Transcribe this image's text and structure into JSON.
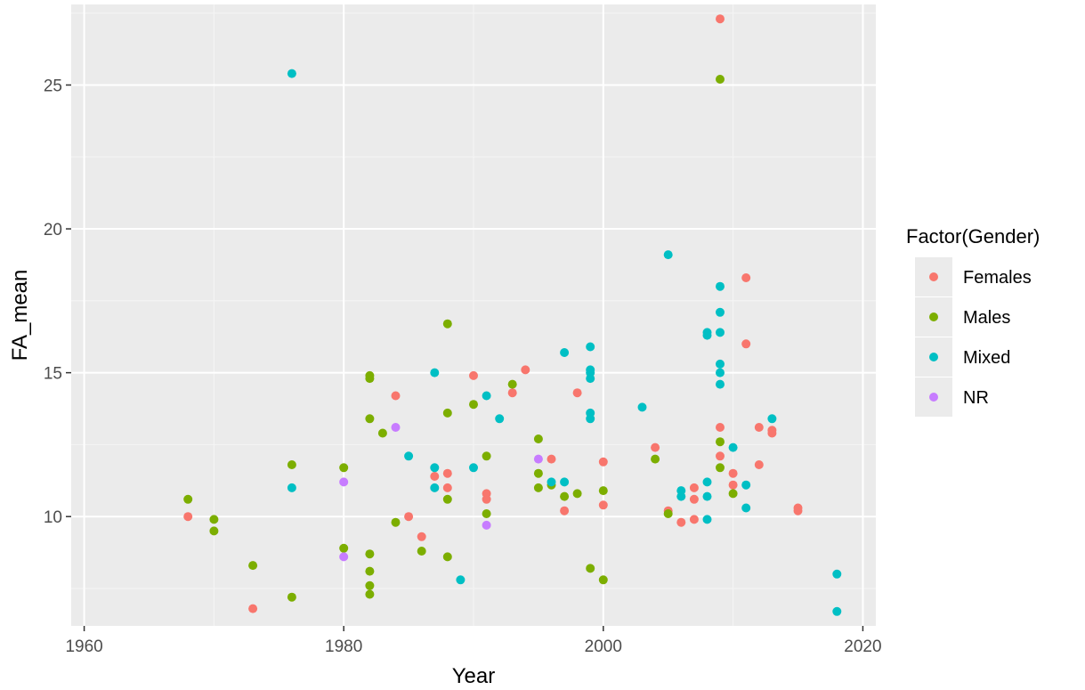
{
  "chart_data": {
    "type": "scatter",
    "xlabel": "Year",
    "ylabel": "FA_mean",
    "xlim": [
      1959,
      2021
    ],
    "ylim": [
      6.2,
      27.8
    ],
    "x_ticks": [
      1960,
      1980,
      2000,
      2020
    ],
    "y_ticks": [
      10,
      15,
      20,
      25
    ],
    "x_tick_labels": [
      "1960",
      "1980",
      "2000",
      "2020"
    ],
    "y_tick_labels": [
      "10",
      "15",
      "20",
      "25"
    ],
    "grid": true,
    "legend_position": "right",
    "legend_title": "Factor(Gender)",
    "series": [
      {
        "name": "Females",
        "color": "#f8766d",
        "points": [
          [
            1968,
            10.0
          ],
          [
            1973,
            6.8
          ],
          [
            1984,
            14.2
          ],
          [
            1985,
            10.0
          ],
          [
            1986,
            9.3
          ],
          [
            1987,
            11.4
          ],
          [
            1988,
            11.5
          ],
          [
            1988,
            11.0
          ],
          [
            1990,
            14.9
          ],
          [
            1991,
            10.8
          ],
          [
            1991,
            10.6
          ],
          [
            1993,
            14.3
          ],
          [
            1994,
            15.1
          ],
          [
            1996,
            12.0
          ],
          [
            1997,
            10.2
          ],
          [
            1998,
            14.3
          ],
          [
            2000,
            11.9
          ],
          [
            2000,
            10.4
          ],
          [
            2004,
            12.4
          ],
          [
            2005,
            10.2
          ],
          [
            2006,
            9.8
          ],
          [
            2007,
            9.9
          ],
          [
            2007,
            10.6
          ],
          [
            2007,
            11.0
          ],
          [
            2009,
            27.3
          ],
          [
            2009,
            13.1
          ],
          [
            2009,
            12.1
          ],
          [
            2010,
            11.5
          ],
          [
            2010,
            11.1
          ],
          [
            2011,
            18.3
          ],
          [
            2011,
            16.0
          ],
          [
            2012,
            13.1
          ],
          [
            2012,
            11.8
          ],
          [
            2013,
            13.0
          ],
          [
            2013,
            12.9
          ],
          [
            2015,
            10.3
          ],
          [
            2015,
            10.2
          ]
        ]
      },
      {
        "name": "Males",
        "color": "#7cae00",
        "points": [
          [
            1968,
            10.6
          ],
          [
            1970,
            9.9
          ],
          [
            1970,
            9.5
          ],
          [
            1973,
            8.3
          ],
          [
            1976,
            11.8
          ],
          [
            1976,
            7.2
          ],
          [
            1980,
            11.7
          ],
          [
            1980,
            8.9
          ],
          [
            1982,
            14.9
          ],
          [
            1982,
            14.8
          ],
          [
            1982,
            13.4
          ],
          [
            1982,
            8.7
          ],
          [
            1982,
            8.1
          ],
          [
            1982,
            7.6
          ],
          [
            1982,
            7.3
          ],
          [
            1983,
            12.9
          ],
          [
            1984,
            9.8
          ],
          [
            1986,
            8.8
          ],
          [
            1988,
            16.7
          ],
          [
            1988,
            13.6
          ],
          [
            1988,
            10.6
          ],
          [
            1988,
            8.6
          ],
          [
            1990,
            13.9
          ],
          [
            1991,
            12.1
          ],
          [
            1991,
            10.1
          ],
          [
            1993,
            14.6
          ],
          [
            1995,
            12.7
          ],
          [
            1995,
            11.5
          ],
          [
            1995,
            11.0
          ],
          [
            1996,
            11.1
          ],
          [
            1997,
            10.7
          ],
          [
            1998,
            10.8
          ],
          [
            1999,
            8.2
          ],
          [
            2000,
            10.9
          ],
          [
            2000,
            7.8
          ],
          [
            2004,
            12.0
          ],
          [
            2005,
            10.1
          ],
          [
            2009,
            25.2
          ],
          [
            2009,
            12.6
          ],
          [
            2009,
            11.7
          ],
          [
            2010,
            10.8
          ]
        ]
      },
      {
        "name": "Mixed",
        "color": "#00bfc4",
        "points": [
          [
            1976,
            25.4
          ],
          [
            1976,
            11.0
          ],
          [
            1985,
            12.1
          ],
          [
            1987,
            15.0
          ],
          [
            1987,
            11.7
          ],
          [
            1987,
            11.0
          ],
          [
            1989,
            7.8
          ],
          [
            1990,
            11.7
          ],
          [
            1991,
            14.2
          ],
          [
            1992,
            13.4
          ],
          [
            1996,
            11.2
          ],
          [
            1997,
            15.7
          ],
          [
            1997,
            11.2
          ],
          [
            1999,
            15.9
          ],
          [
            1999,
            15.1
          ],
          [
            1999,
            15.0
          ],
          [
            1999,
            14.8
          ],
          [
            1999,
            13.6
          ],
          [
            1999,
            13.4
          ],
          [
            2003,
            13.8
          ],
          [
            2005,
            19.1
          ],
          [
            2006,
            10.9
          ],
          [
            2006,
            10.7
          ],
          [
            2008,
            16.4
          ],
          [
            2008,
            16.3
          ],
          [
            2008,
            11.2
          ],
          [
            2008,
            10.7
          ],
          [
            2008,
            9.9
          ],
          [
            2009,
            18.0
          ],
          [
            2009,
            17.1
          ],
          [
            2009,
            16.4
          ],
          [
            2009,
            15.3
          ],
          [
            2009,
            15.0
          ],
          [
            2009,
            14.6
          ],
          [
            2010,
            12.4
          ],
          [
            2011,
            11.1
          ],
          [
            2011,
            10.3
          ],
          [
            2013,
            13.4
          ],
          [
            2018,
            8.0
          ],
          [
            2018,
            6.7
          ]
        ]
      },
      {
        "name": "NR",
        "color": "#c77cff",
        "points": [
          [
            1980,
            11.2
          ],
          [
            1980,
            8.6
          ],
          [
            1984,
            13.1
          ],
          [
            1991,
            9.7
          ],
          [
            1995,
            12.0
          ]
        ]
      }
    ]
  }
}
